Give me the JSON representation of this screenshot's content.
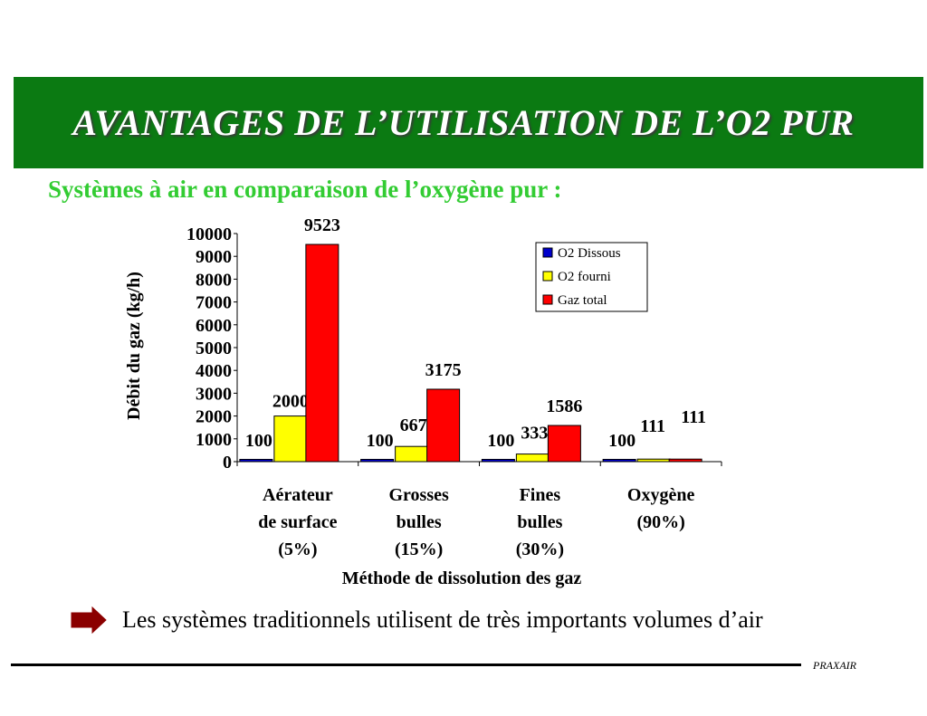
{
  "slide": {
    "title": "AVANTAGES DE L’UTILISATION DE L’O2 PUR",
    "subtitle": "Systèmes à air en comparaison de l’oxygène pur :",
    "note": "Les systèmes traditionnels utilisent de très importants volumes d’air",
    "footer_brand": "PRAXAIR",
    "colors": {
      "banner": "#0b7a12",
      "subtitle": "#33cc33",
      "arrow": "#8b0000"
    }
  },
  "chart_data": {
    "type": "bar",
    "title": "",
    "xlabel": "Méthode de dissolution des gaz",
    "ylabel": "Débit du gaz (kg/h)",
    "ylim": [
      0,
      10000
    ],
    "yticks": [
      0,
      1000,
      2000,
      3000,
      4000,
      5000,
      6000,
      7000,
      8000,
      9000,
      10000
    ],
    "grid": false,
    "legend_position": "top-right",
    "categories": [
      [
        "Aérateur",
        "de surface",
        "(5%)"
      ],
      [
        "Grosses",
        "bulles",
        "(15%)"
      ],
      [
        "Fines",
        "bulles",
        "(30%)"
      ],
      [
        "Oxygène",
        "(90%)"
      ]
    ],
    "series": [
      {
        "name": "O2 Dissous",
        "color": "#0000cc",
        "values": [
          100,
          100,
          100,
          100
        ]
      },
      {
        "name": "O2 fourni",
        "color": "#ffff00",
        "values": [
          2000,
          667,
          333,
          111
        ]
      },
      {
        "name": "Gaz total",
        "color": "#ff0000",
        "values": [
          9523,
          3175,
          1586,
          111
        ]
      }
    ]
  }
}
